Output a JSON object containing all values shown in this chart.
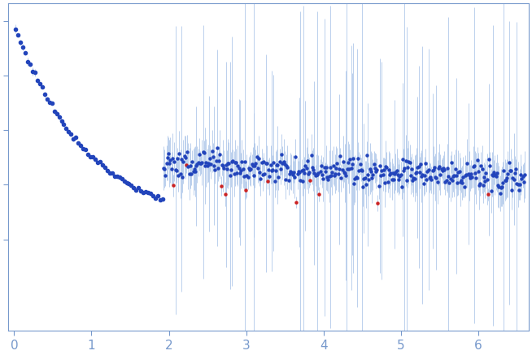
{
  "dot_color": "#2244bb",
  "error_color": "#aac4e8",
  "outlier_dot_color": "#cc2222",
  "outlier_error_color": "#aac4e8",
  "axis_color": "#7799cc",
  "tick_color": "#7799cc",
  "background_color": "#ffffff",
  "x_ticks": [
    0,
    1,
    2,
    3,
    4,
    5,
    6
  ],
  "xlim": [
    -0.08,
    6.65
  ],
  "ylim": [
    -0.42,
    1.08
  ],
  "vline_positions": [
    3.1,
    4.3
  ],
  "vline_color": "#aac4e8",
  "vline_alpha": 0.8,
  "seed": 77
}
